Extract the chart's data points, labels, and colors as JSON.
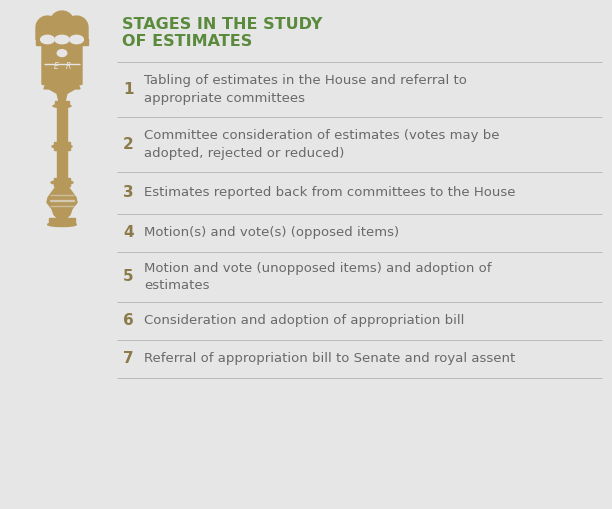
{
  "title_line1": "STAGES IN THE STUDY",
  "title_line2": "OF ESTIMATES",
  "title_color": "#5a8a3c",
  "bg_color": "#e6e6e6",
  "number_color": "#8b7a4a",
  "text_color": "#696969",
  "line_color": "#bbbbbb",
  "stages": [
    {
      "num": "1",
      "text": "Tabling of estimates in the House and referral to\nappropriate committees"
    },
    {
      "num": "2",
      "text": "Committee consideration of estimates (votes may be\nadopted, rejected or reduced)"
    },
    {
      "num": "3",
      "text": "Estimates reported back from committees to the House"
    },
    {
      "num": "4",
      "text": "Motion(s) and vote(s) (opposed items)"
    },
    {
      "num": "5",
      "text": "Motion and vote (unopposed items) and adoption of\nestimates"
    },
    {
      "num": "6",
      "text": "Consideration and adoption of appropriation bill"
    },
    {
      "num": "7",
      "text": "Referral of appropriation bill to Senate and royal assent"
    }
  ],
  "mace_color": "#b5985a",
  "title_fontsize": 11.5,
  "num_fontsize": 11,
  "text_fontsize": 9.5,
  "figw": 6.12,
  "figh": 5.09,
  "dpi": 100
}
